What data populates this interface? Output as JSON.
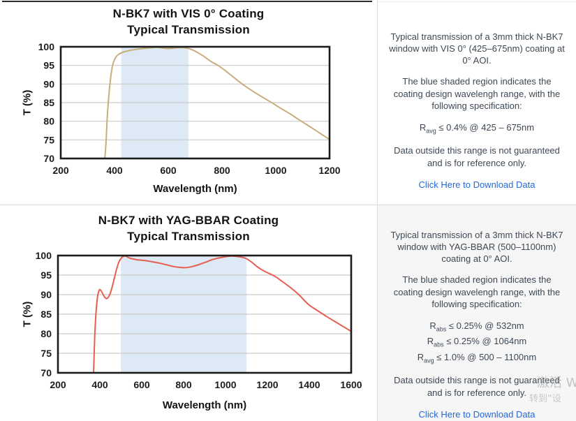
{
  "chart_data": [
    {
      "type": "line",
      "title": "N-BK7 with VIS 0° Coating",
      "subtitle": "Typical Transmission",
      "xlabel": "Wavelength (nm)",
      "ylabel": "T (%)",
      "xlim": [
        200,
        1200
      ],
      "ylim": [
        70,
        100
      ],
      "xticks": [
        200,
        400,
        600,
        800,
        1000,
        1200
      ],
      "yticks": [
        70,
        75,
        80,
        85,
        90,
        95,
        100
      ],
      "grid": true,
      "legend": "none",
      "band": {
        "from": 425,
        "to": 675,
        "color": "#dde9f4",
        "meaning": "coating design wavelength range"
      },
      "line_color": "#c8ad7d",
      "series": [
        {
          "name": "N-BK7 with VIS 0° Coating — typical transmission of 3mm thick window",
          "points": [
            [
              364,
              70
            ],
            [
              369,
              75
            ],
            [
              373,
              81
            ],
            [
              378,
              86
            ],
            [
              383,
              90
            ],
            [
              389,
              93.5
            ],
            [
              396,
              95.8
            ],
            [
              405,
              97.2
            ],
            [
              416,
              98.0
            ],
            [
              430,
              98.5
            ],
            [
              450,
              98.9
            ],
            [
              470,
              99.2
            ],
            [
              500,
              99.5
            ],
            [
              530,
              99.7
            ],
            [
              560,
              99.85
            ],
            [
              590,
              99.55
            ],
            [
              615,
              99.6
            ],
            [
              645,
              99.8
            ],
            [
              672,
              99.6
            ],
            [
              695,
              99.0
            ],
            [
              715,
              98.2
            ],
            [
              735,
              97.3
            ],
            [
              760,
              96.0
            ],
            [
              785,
              95.0
            ],
            [
              810,
              93.7
            ],
            [
              840,
              92.0
            ],
            [
              875,
              90.0
            ],
            [
              910,
              88.3
            ],
            [
              945,
              86.7
            ],
            [
              985,
              85.0
            ],
            [
              1020,
              83.4
            ],
            [
              1055,
              81.9
            ],
            [
              1095,
              80.0
            ],
            [
              1130,
              78.4
            ],
            [
              1160,
              77.0
            ],
            [
              1200,
              75.1
            ]
          ]
        }
      ]
    },
    {
      "type": "line",
      "title": "N-BK7 with YAG-BBAR Coating",
      "subtitle": "Typical Transmission",
      "xlabel": "Wavelength (nm)",
      "ylabel": "T (%)",
      "xlim": [
        200,
        1600
      ],
      "ylim": [
        70,
        100
      ],
      "xticks": [
        200,
        400,
        600,
        800,
        1000,
        1200,
        1400,
        1600
      ],
      "yticks": [
        70,
        75,
        80,
        85,
        90,
        95,
        100
      ],
      "grid": true,
      "legend": "none",
      "band": {
        "from": 500,
        "to": 1100,
        "color": "#dde9f4",
        "meaning": "coating design wavelength range"
      },
      "line_color": "#e85d51",
      "series": [
        {
          "name": "N-BK7 with YAG-BBAR Coating — typical transmission of 3mm thick window",
          "points": [
            [
              370,
              70
            ],
            [
              373,
              75
            ],
            [
              376,
              80
            ],
            [
              380,
              84
            ],
            [
              385,
              87.5
            ],
            [
              390,
              89.8
            ],
            [
              396,
              91.0
            ],
            [
              401,
              91.3
            ],
            [
              408,
              90.8
            ],
            [
              416,
              90.0
            ],
            [
              424,
              89.3
            ],
            [
              432,
              89.0
            ],
            [
              440,
              89.3
            ],
            [
              450,
              90.4
            ],
            [
              460,
              92.2
            ],
            [
              470,
              94.4
            ],
            [
              480,
              96.5
            ],
            [
              490,
              98.2
            ],
            [
              500,
              99.2
            ],
            [
              510,
              99.7
            ],
            [
              522,
              99.9
            ],
            [
              540,
              99.4
            ],
            [
              560,
              99.1
            ],
            [
              580,
              98.9
            ],
            [
              600,
              98.8
            ],
            [
              630,
              98.6
            ],
            [
              660,
              98.3
            ],
            [
              690,
              98.0
            ],
            [
              720,
              97.6
            ],
            [
              750,
              97.2
            ],
            [
              775,
              97.0
            ],
            [
              800,
              96.9
            ],
            [
              825,
              97.0
            ],
            [
              850,
              97.3
            ],
            [
              880,
              97.8
            ],
            [
              910,
              98.4
            ],
            [
              940,
              99.0
            ],
            [
              970,
              99.4
            ],
            [
              1000,
              99.7
            ],
            [
              1025,
              99.85
            ],
            [
              1050,
              99.8
            ],
            [
              1075,
              99.6
            ],
            [
              1100,
              99.2
            ],
            [
              1125,
              98.3
            ],
            [
              1150,
              97.2
            ],
            [
              1175,
              96.3
            ],
            [
              1200,
              95.6
            ],
            [
              1235,
              94.7
            ],
            [
              1270,
              93.4
            ],
            [
              1310,
              91.8
            ],
            [
              1350,
              90.0
            ],
            [
              1380,
              88.3
            ],
            [
              1405,
              87.1
            ],
            [
              1440,
              85.9
            ],
            [
              1480,
              84.5
            ],
            [
              1520,
              83.2
            ],
            [
              1560,
              81.9
            ],
            [
              1600,
              80.6
            ]
          ]
        }
      ]
    }
  ],
  "panels": [
    {
      "paragraph1": "Typical transmission of a 3mm thick N-BK7 window with VIS 0° (425–675nm) coating at 0° AOI.",
      "paragraph2": "The blue shaded region indicates the coating design wavelengh range, with the following specification:",
      "specs": [
        {
          "r": "R",
          "sub": "avg",
          "text": " ≤ 0.4% @ 425 – 675nm"
        }
      ],
      "paragraph3": "Data outside this range is not guaranteed and is for reference only.",
      "link": "Click Here to Download Data"
    },
    {
      "paragraph1": "Typical transmission of a 3mm thick N-BK7 window with YAG-BBAR (500–1100nm) coating at 0° AOI.",
      "paragraph2": "The blue shaded region indicates the coating design wavelengh range, with the following specification:",
      "specs": [
        {
          "r": "R",
          "sub": "abs",
          "text": " ≤ 0.25% @ 532nm"
        },
        {
          "r": "R",
          "sub": "abs",
          "text": " ≤ 0.25% @ 1064nm"
        },
        {
          "r": "R",
          "sub": "avg",
          "text": " ≤ 1.0% @ 500 – 1100nm"
        }
      ],
      "paragraph3": "Data outside this range is not guaranteed and is for reference only.",
      "link": "Click Here to Download Data"
    }
  ],
  "watermark": {
    "line1": "激活 W",
    "line2": "转到“设"
  },
  "colors": {
    "band_blue": "#dde9f4",
    "vis_curve_tan": "#c8ad7d",
    "yag_curve_red": "#e85d51",
    "gridline_gray": "#cbcbcb",
    "axis_black": "#1c1c1c",
    "panel_text": "#3d4853",
    "link_blue": "#2468d9"
  }
}
